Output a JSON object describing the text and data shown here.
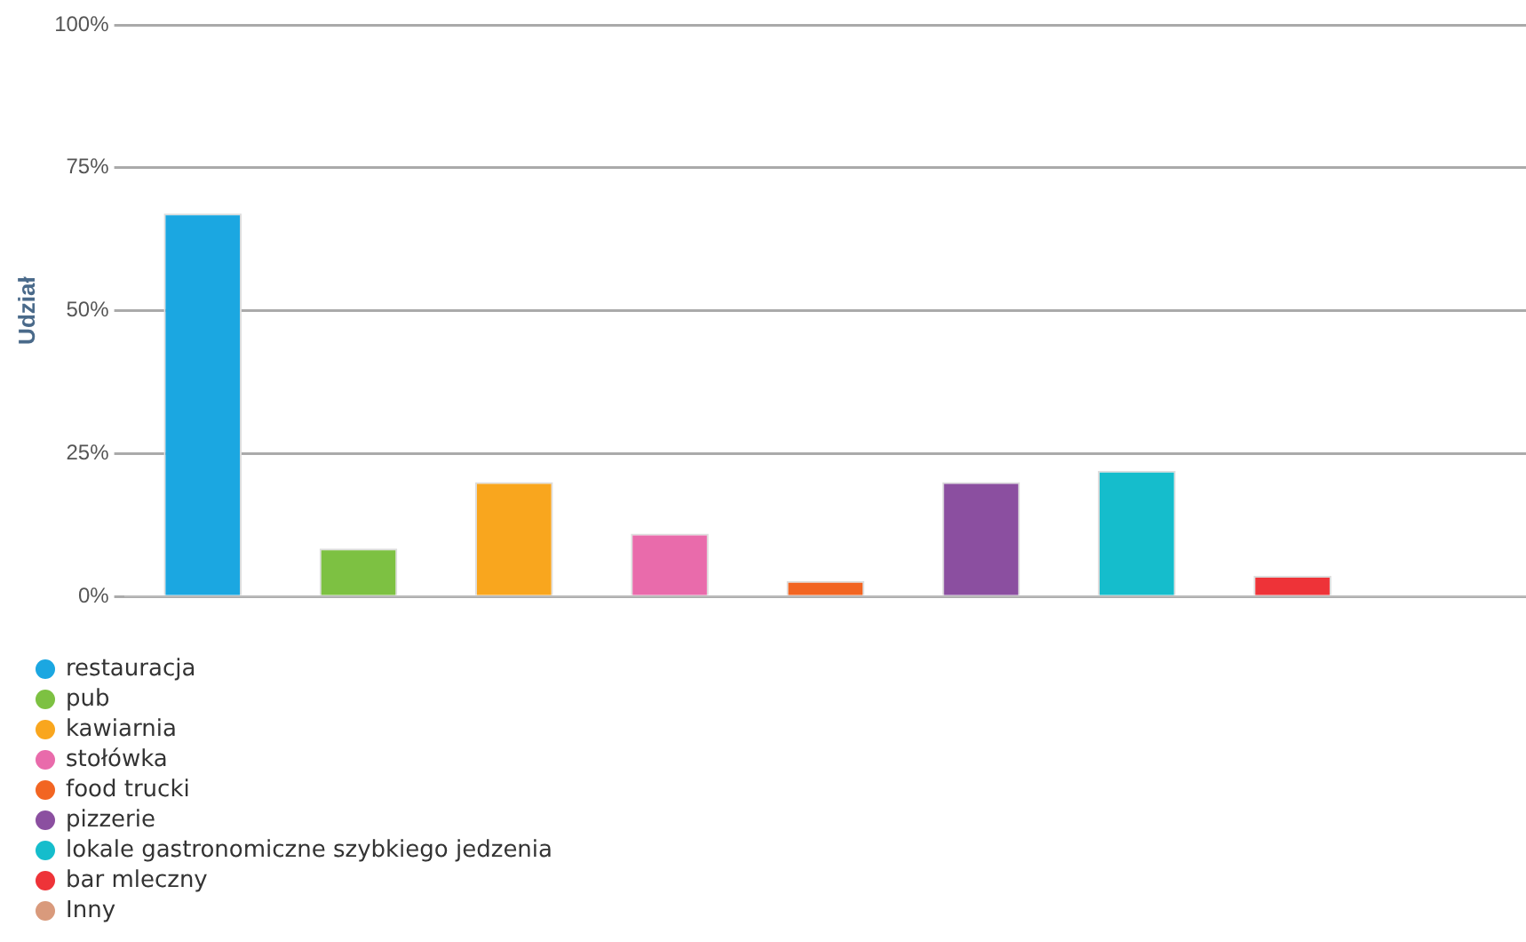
{
  "chart_data": {
    "type": "bar",
    "ylabel": "Udział",
    "categories": [
      null,
      null,
      null,
      null,
      null,
      null,
      null,
      null,
      null
    ],
    "series": [
      {
        "name": "restauracja",
        "color": "#1ba7e1",
        "values": [
          67,
          null,
          null,
          null,
          null,
          null,
          null,
          null,
          null
        ]
      },
      {
        "name": "pub",
        "color": "#7dc142",
        "values": [
          null,
          8.4,
          null,
          null,
          null,
          null,
          null,
          null,
          null
        ]
      },
      {
        "name": "kawiarnia",
        "color": "#f9a61e",
        "values": [
          null,
          null,
          20,
          null,
          null,
          null,
          null,
          null,
          null
        ]
      },
      {
        "name": "stołówka",
        "color": "#e96bab",
        "values": [
          null,
          null,
          null,
          11,
          null,
          null,
          null,
          null,
          null
        ]
      },
      {
        "name": "food trucki",
        "color": "#f26522",
        "values": [
          null,
          null,
          null,
          null,
          2.7,
          null,
          null,
          null,
          null
        ]
      },
      {
        "name": "pizzerie",
        "color": "#8b4fa0",
        "values": [
          null,
          null,
          null,
          null,
          null,
          20,
          null,
          null,
          null
        ]
      },
      {
        "name": "lokale gastronomiczne szybkiego jedzenia",
        "color": "#15bdcc",
        "values": [
          null,
          null,
          null,
          null,
          null,
          null,
          22,
          null,
          null
        ]
      },
      {
        "name": "bar mleczny",
        "color": "#ee3338",
        "values": [
          null,
          null,
          null,
          null,
          null,
          null,
          null,
          3.6,
          null
        ]
      },
      {
        "name": "Inny",
        "color": "#d99a7c",
        "values": [
          null,
          null,
          null,
          null,
          null,
          null,
          null,
          null,
          0
        ]
      }
    ],
    "ylim": [
      0,
      100
    ],
    "yticks": [
      {
        "value": 0,
        "label": "0%"
      },
      {
        "value": 25,
        "label": "25%"
      },
      {
        "value": 50,
        "label": "50%"
      },
      {
        "value": 75,
        "label": "75%"
      },
      {
        "value": 100,
        "label": "100%"
      }
    ],
    "grid": "y",
    "legend": "bottom left"
  }
}
